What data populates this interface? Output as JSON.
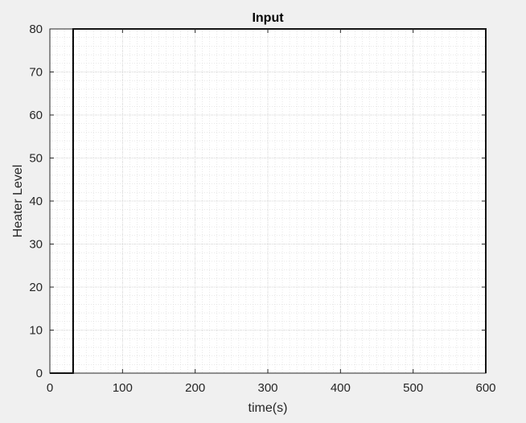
{
  "chart_data": {
    "type": "line",
    "title": "Input",
    "xlabel": "time(s)",
    "ylabel": "Heater Level",
    "xlim": [
      0,
      600
    ],
    "ylim": [
      0,
      80
    ],
    "xticks": [
      0,
      100,
      200,
      300,
      400,
      500,
      600
    ],
    "yticks": [
      0,
      10,
      20,
      30,
      40,
      50,
      60,
      70,
      80
    ],
    "xtick_labels": [
      "0",
      "100",
      "200",
      "300",
      "400",
      "500",
      "600"
    ],
    "ytick_labels": [
      "0",
      "10",
      "20",
      "30",
      "40",
      "50",
      "60",
      "70",
      "80"
    ],
    "grid": true,
    "minor_grid": true,
    "series": [
      {
        "x": [
          0,
          32,
          32,
          600,
          600
        ],
        "y": [
          0,
          0,
          80,
          80,
          0
        ],
        "color": "#000000"
      }
    ]
  },
  "colors": {
    "figure_background": "#f0f0f0",
    "axes_background": "#ffffff",
    "line": "#000000",
    "grid": "#d9d9d9",
    "text": "#262626"
  }
}
